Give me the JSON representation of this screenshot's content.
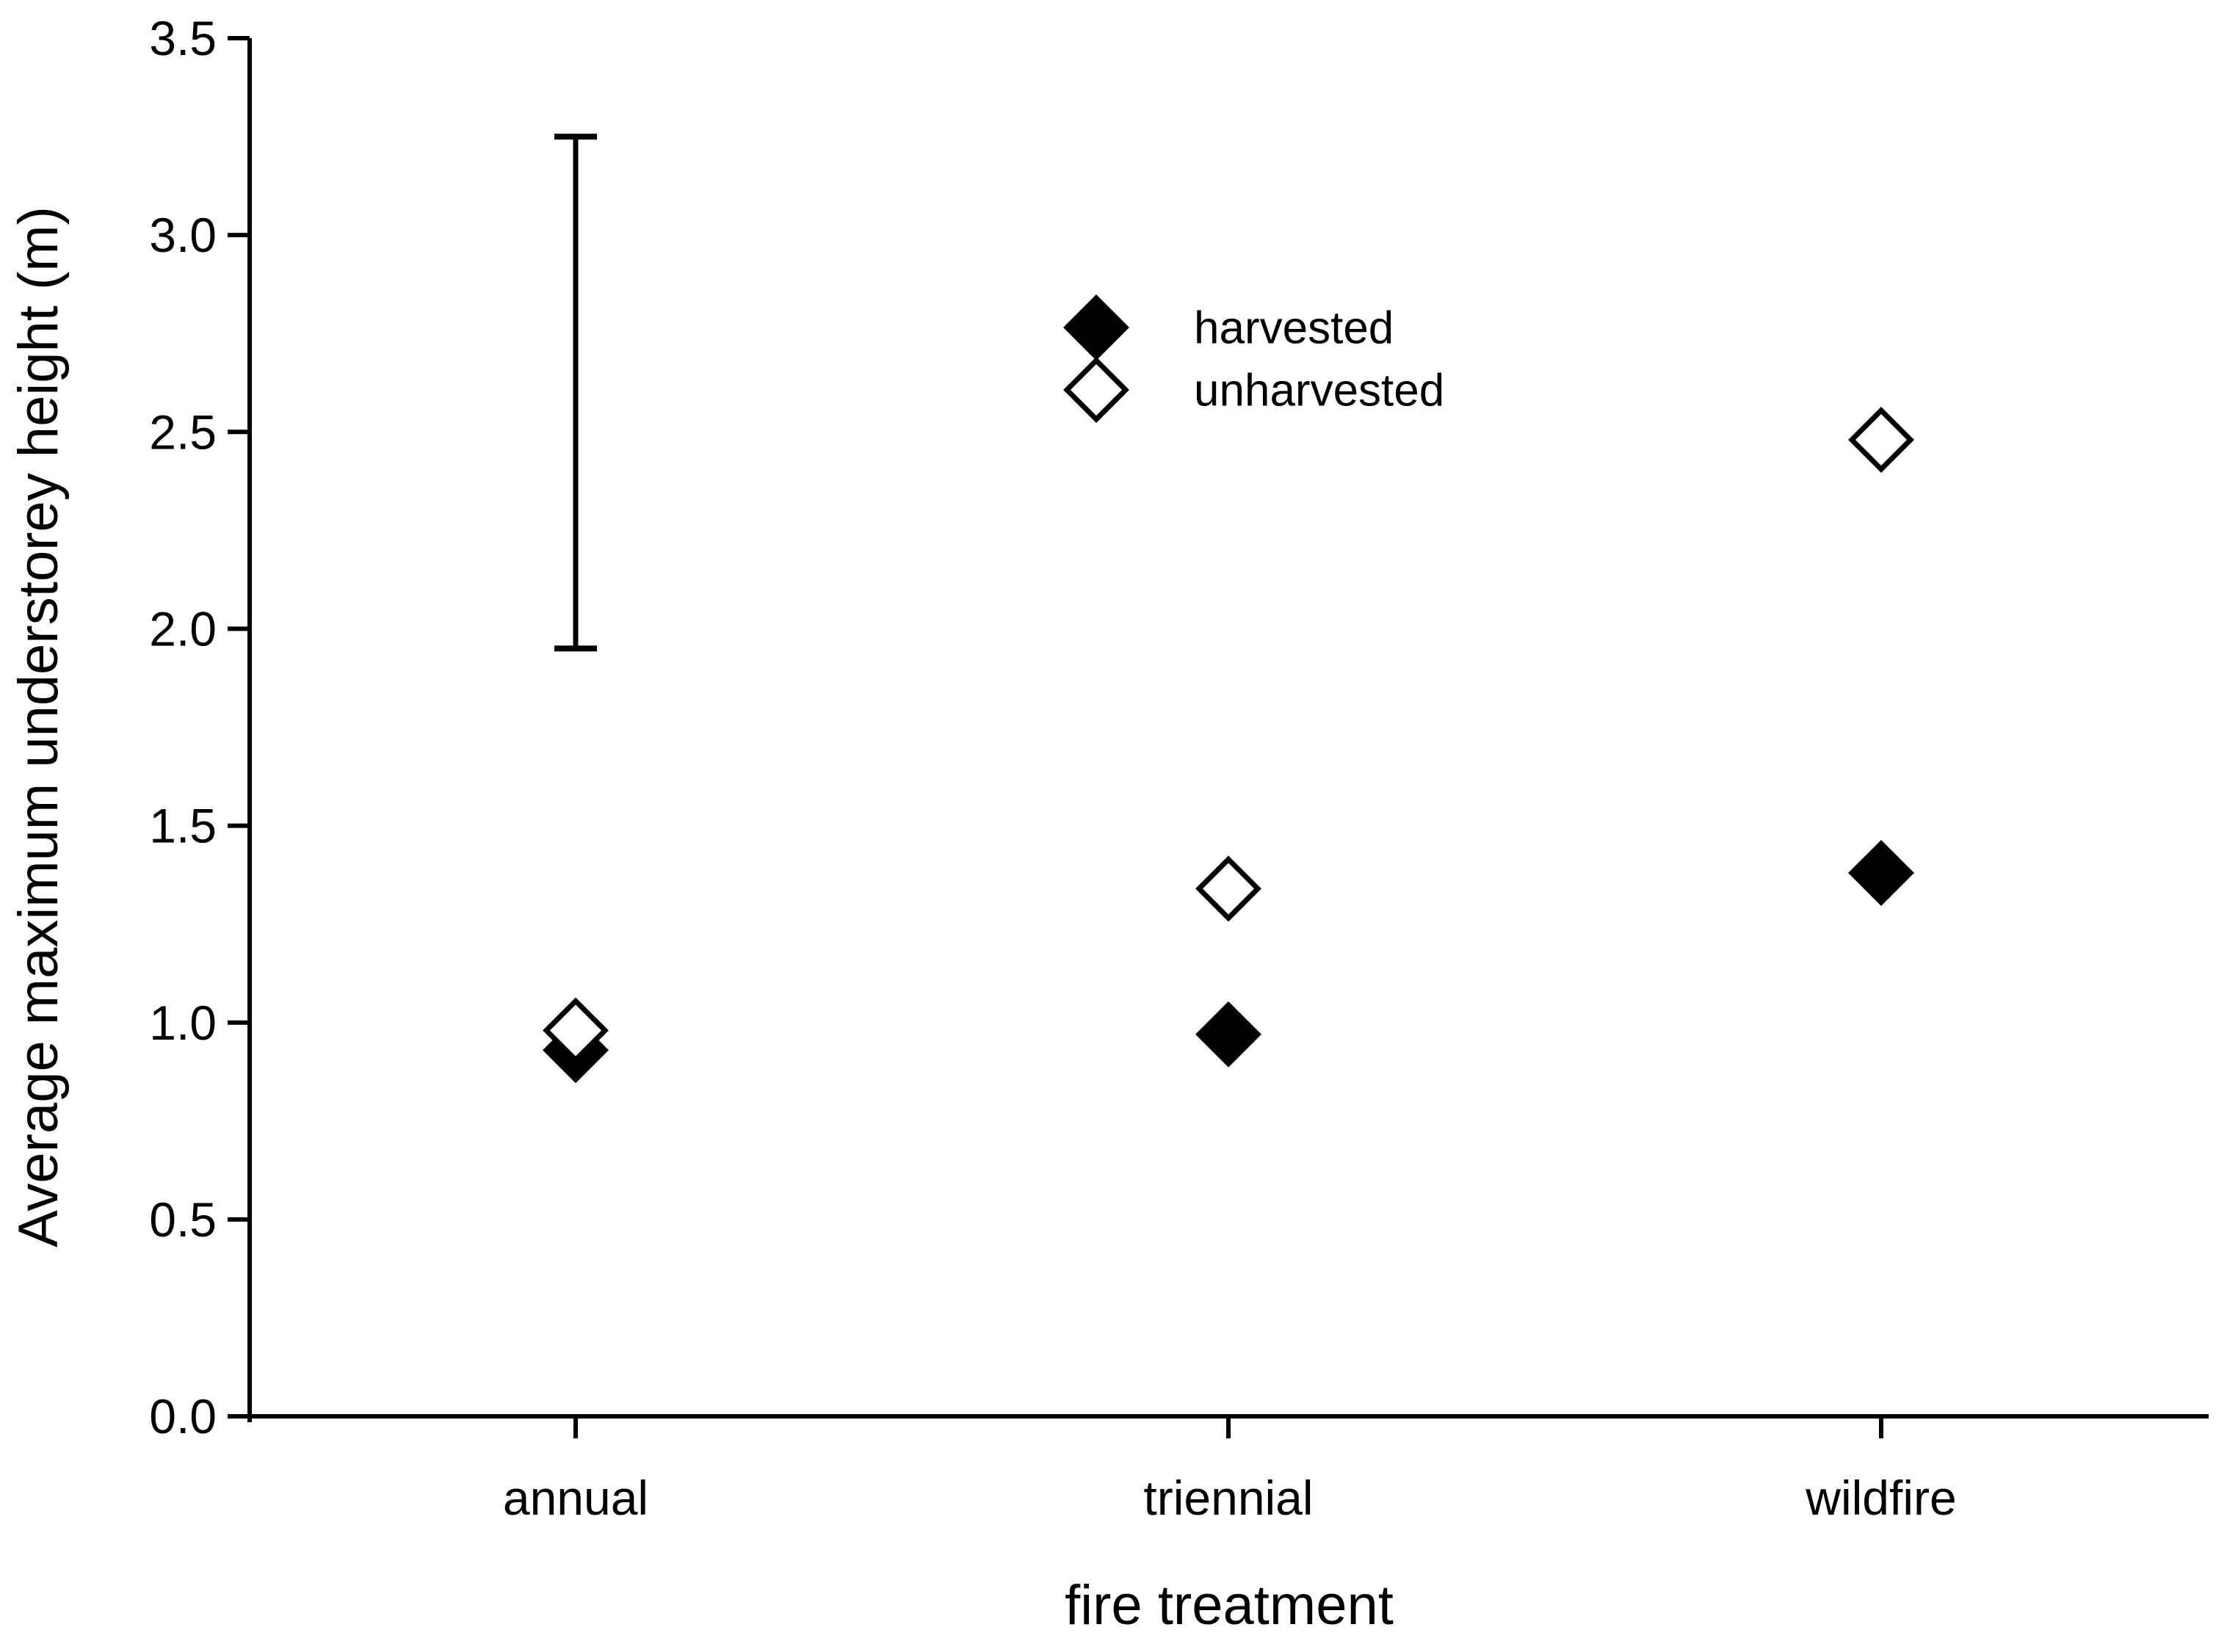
{
  "chart_data": {
    "type": "scatter",
    "title": "",
    "xlabel": "fire treatment",
    "ylabel": "Average maximum understorey height (m)",
    "categories": [
      "annual",
      "triennial",
      "wildfire"
    ],
    "series": [
      {
        "name": "harvested",
        "marker": "filled-diamond",
        "color": "#000000",
        "values": [
          0.93,
          0.97,
          1.38
        ]
      },
      {
        "name": "unharvested",
        "marker": "open-diamond",
        "color": "#000000",
        "values": [
          0.98,
          1.34,
          2.48
        ]
      }
    ],
    "error_bar": {
      "category": "annual",
      "low": 1.95,
      "high": 3.25
    },
    "ylim": [
      0.0,
      3.5
    ],
    "ytick_step": 0.5,
    "ytick_labels": [
      "0.0",
      "0.5",
      "1.0",
      "1.5",
      "2.0",
      "2.5",
      "3.0",
      "3.5"
    ],
    "legend": {
      "position": "upper-center",
      "entries": [
        "harvested",
        "unharvested"
      ]
    },
    "grid": false,
    "colors": {
      "foreground": "#000000",
      "background": "#ffffff"
    }
  }
}
